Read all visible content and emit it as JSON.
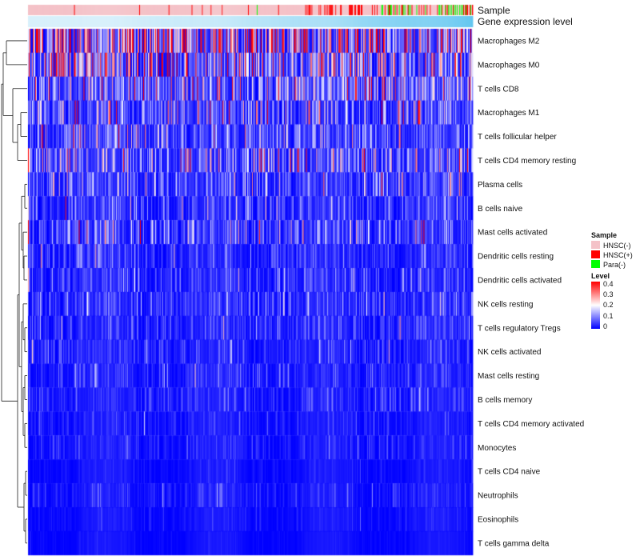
{
  "chart_data": {
    "type": "heatmap",
    "annotation_labels": [
      "Sample",
      "Gene expression level"
    ],
    "rows": [
      {
        "name": "Macrophages M2",
        "mean": 0.25
      },
      {
        "name": "Macrophages M0",
        "mean": 0.18
      },
      {
        "name": "T cells CD8",
        "mean": 0.12
      },
      {
        "name": "Macrophages M1",
        "mean": 0.09
      },
      {
        "name": "T cells follicular helper",
        "mean": 0.08
      },
      {
        "name": "T cells CD4 memory resting",
        "mean": 0.1
      },
      {
        "name": "Plasma cells",
        "mean": 0.07
      },
      {
        "name": "B cells naive",
        "mean": 0.05
      },
      {
        "name": "Mast cells activated",
        "mean": 0.07
      },
      {
        "name": "Dendritic cells resting",
        "mean": 0.04
      },
      {
        "name": "Dendritic cells activated",
        "mean": 0.04
      },
      {
        "name": "NK cells resting",
        "mean": 0.05
      },
      {
        "name": "T cells regulatory  Tregs",
        "mean": 0.04
      },
      {
        "name": "NK cells activated",
        "mean": 0.03
      },
      {
        "name": "Mast cells resting",
        "mean": 0.03
      },
      {
        "name": "B cells memory",
        "mean": 0.03
      },
      {
        "name": "T cells CD4 memory activated",
        "mean": 0.02
      },
      {
        "name": "Monocytes",
        "mean": 0.02
      },
      {
        "name": "T cells CD4 naive",
        "mean": 0.01
      },
      {
        "name": "Neutrophils",
        "mean": 0.02
      },
      {
        "name": "Eosinophils",
        "mean": 0.01
      },
      {
        "name": "T cells gamma delta",
        "mean": 0.005
      }
    ],
    "legend_sample": {
      "title": "Sample",
      "entries": [
        {
          "label": "HNSC(-)",
          "color": "#f4c2c8"
        },
        {
          "label": "HNSC(+)",
          "color": "#ff0000"
        },
        {
          "label": "Para(-)",
          "color": "#00ff00"
        }
      ]
    },
    "legend_level": {
      "title": "Level",
      "ticks": [
        0.4,
        0.3,
        0.2,
        0.1,
        0
      ],
      "tick_labels": [
        "0.4",
        "0.3",
        "0.2",
        "0.1",
        "0"
      ],
      "range": [
        0,
        0.4
      ],
      "colors": [
        "#0000ff",
        "#ffffff",
        "#ff0000"
      ]
    },
    "expression_bar_colors": [
      "#d8f0fb",
      "#62c6f0"
    ],
    "n_samples": 560
  }
}
